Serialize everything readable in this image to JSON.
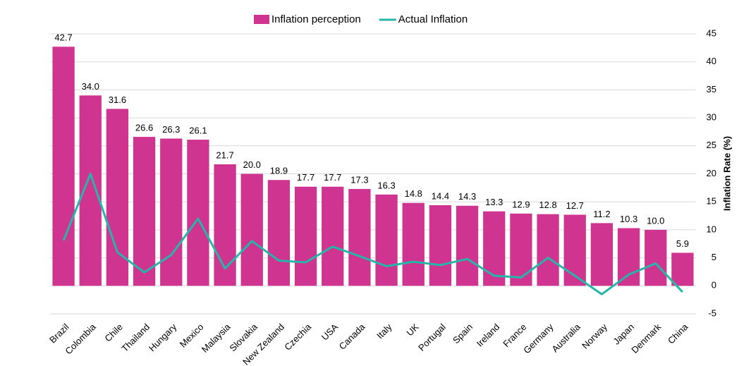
{
  "chart_data": {
    "type": "bar",
    "categories": [
      "Brazil",
      "Colombia",
      "Chile",
      "Thailand",
      "Hungary",
      "Mexico",
      "Malaysia",
      "Slovakia",
      "New Zealand",
      "Czechia",
      "USA",
      "Canada",
      "Italy",
      "UK",
      "Portugal",
      "Spain",
      "Ireland",
      "France",
      "Germany",
      "Australia",
      "Norway",
      "Japan",
      "Denmark",
      "China"
    ],
    "series": [
      {
        "name": "Inflation perception",
        "type": "bar",
        "color": "#cf3590",
        "values": [
          42.7,
          34.0,
          31.6,
          26.6,
          26.3,
          26.1,
          21.7,
          20.0,
          18.9,
          17.7,
          17.7,
          17.3,
          16.3,
          14.8,
          14.4,
          14.3,
          13.3,
          12.9,
          12.8,
          12.7,
          11.2,
          10.3,
          10.0,
          5.9
        ],
        "value_labels": [
          "42.7",
          "34.0",
          "31.6",
          "26.6",
          "26.3",
          "26.1",
          "21.7",
          "20.0",
          "18.9",
          "17.7",
          "17.7",
          "17.3",
          "16.3",
          "14.8",
          "14.4",
          "14.3",
          "13.3",
          "12.9",
          "12.8",
          "12.7",
          "11.2",
          "10.3",
          "10.0",
          "5.9"
        ]
      },
      {
        "name": "Actual Inflation",
        "type": "line",
        "color": "#26b5a8",
        "values": [
          8.1,
          20,
          6.0,
          2.4,
          5.5,
          12,
          3.1,
          8,
          4.5,
          4.2,
          7.0,
          5.3,
          3.5,
          4.3,
          3.7,
          4.8,
          1.8,
          1.5,
          5,
          1.8,
          -1.5,
          2,
          4,
          -1.1
        ]
      }
    ],
    "y_axis_label": "Inflation Rate (%)",
    "ylim": [
      -5,
      45
    ],
    "yticks": [
      -5,
      0,
      5,
      10,
      15,
      20,
      25,
      30,
      35,
      40,
      45
    ],
    "grid": true,
    "legend": "top"
  }
}
